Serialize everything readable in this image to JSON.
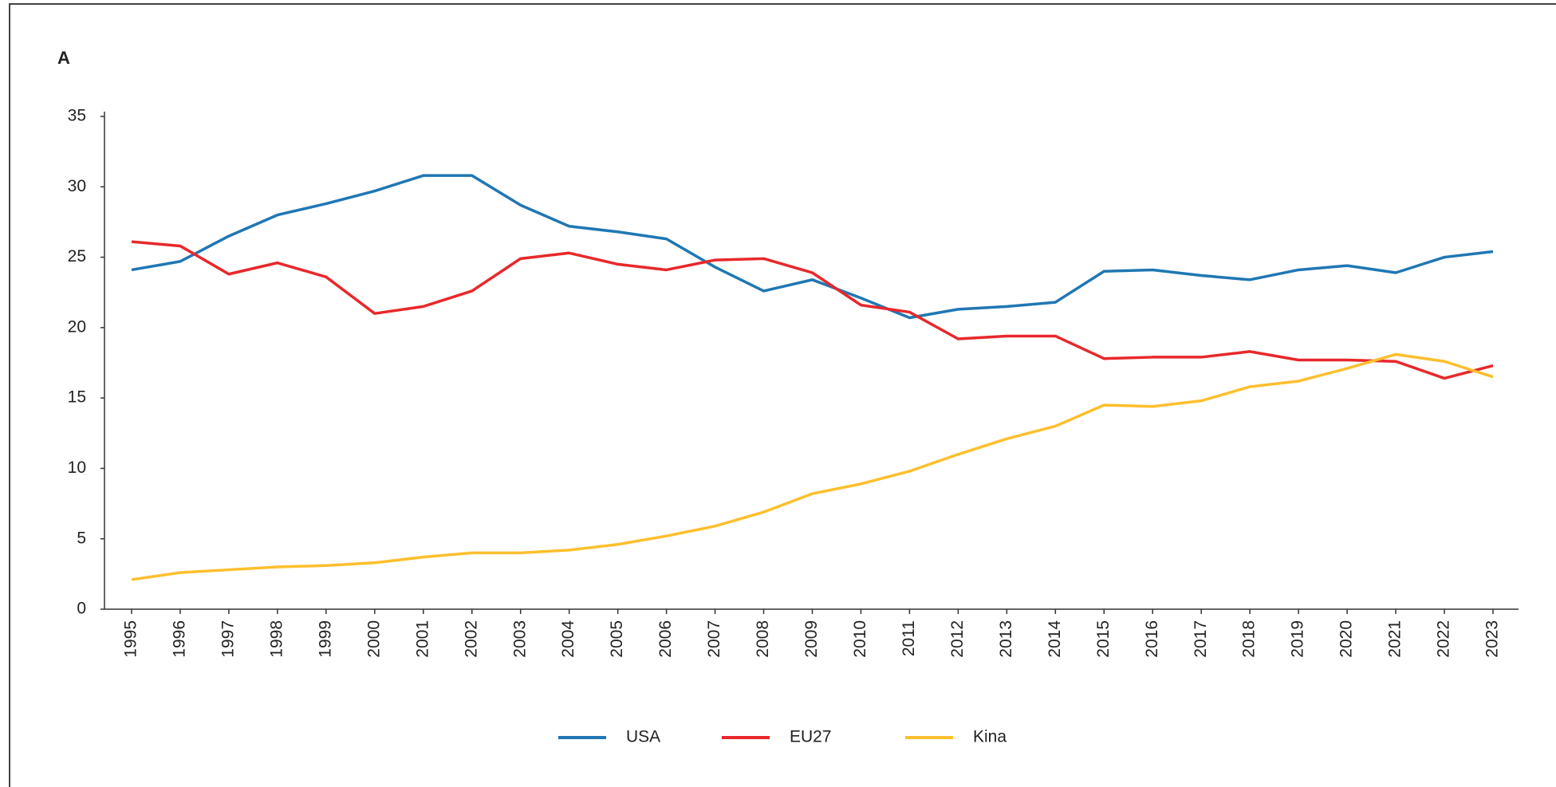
{
  "chart_data": {
    "type": "line",
    "title": "A",
    "x": [
      1995,
      1996,
      1997,
      1998,
      1999,
      2000,
      2001,
      2002,
      2003,
      2004,
      2005,
      2006,
      2007,
      2008,
      2009,
      2010,
      2011,
      2012,
      2013,
      2014,
      2015,
      2016,
      2017,
      2018,
      2019,
      2020,
      2021,
      2022,
      2023
    ],
    "series": [
      {
        "name": "USA",
        "color": "#1f77b4",
        "values": [
          24.1,
          24.7,
          26.5,
          28.0,
          28.8,
          29.7,
          30.8,
          30.8,
          28.7,
          27.2,
          26.8,
          26.3,
          24.3,
          22.6,
          23.4,
          22.1,
          20.7,
          21.3,
          21.5,
          21.8,
          24.0,
          24.1,
          23.7,
          23.4,
          24.1,
          24.4,
          23.9,
          25.0,
          25.4
        ]
      },
      {
        "name": "EU27",
        "color": "#e8282b",
        "values": [
          26.1,
          25.8,
          23.8,
          24.6,
          23.6,
          21.0,
          21.5,
          22.6,
          24.9,
          25.3,
          24.5,
          24.1,
          24.8,
          24.9,
          23.9,
          21.6,
          21.1,
          19.2,
          19.4,
          19.4,
          17.8,
          17.9,
          17.9,
          18.3,
          17.7,
          17.7,
          17.6,
          16.4,
          17.3
        ]
      },
      {
        "name": "Kina",
        "color": "#fdbf2d",
        "values": [
          2.1,
          2.6,
          2.8,
          3.0,
          3.1,
          3.3,
          3.7,
          4.0,
          4.0,
          4.2,
          4.6,
          5.2,
          5.9,
          6.9,
          8.2,
          8.9,
          9.8,
          11.0,
          12.1,
          13.0,
          14.5,
          14.4,
          14.8,
          15.8,
          16.2,
          17.1,
          18.1,
          17.6,
          16.5
        ]
      }
    ],
    "xlim": [
      1995,
      2023
    ],
    "ylim": [
      0,
      35
    ],
    "yticks": [
      0,
      5,
      10,
      15,
      20,
      25,
      30,
      35
    ],
    "grid": false,
    "legend": "bottom"
  }
}
